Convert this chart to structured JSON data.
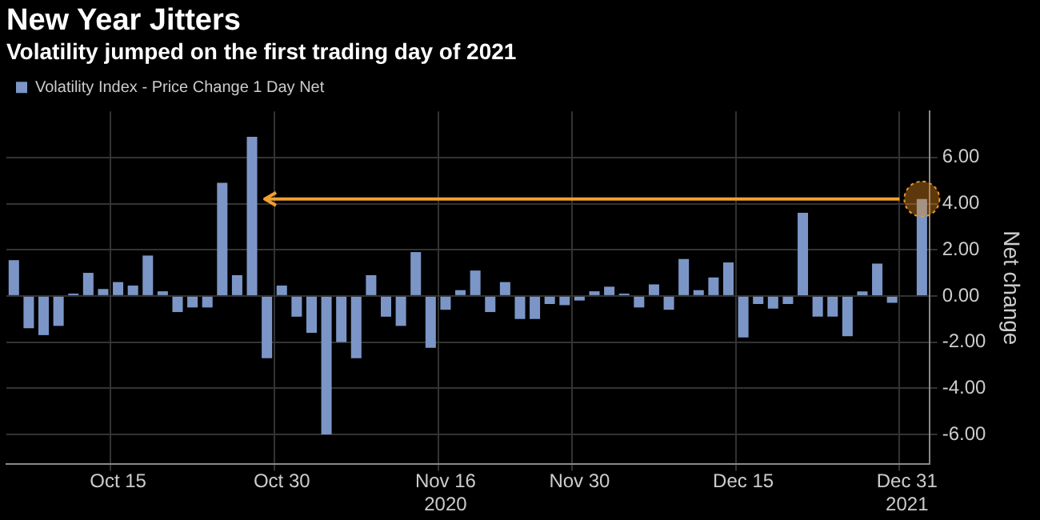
{
  "chart_data": {
    "type": "bar",
    "title": "New Year Jitters",
    "subtitle": "Volatility jumped on the first trading day of 2021",
    "ylabel": "Net change",
    "categories": [
      null,
      null,
      null,
      null,
      null,
      null,
      null,
      "Oct 15",
      null,
      null,
      null,
      null,
      null,
      null,
      null,
      null,
      null,
      null,
      "Oct 30",
      null,
      null,
      null,
      null,
      null,
      null,
      null,
      null,
      null,
      null,
      "Nov 16\n2020",
      null,
      null,
      null,
      null,
      null,
      null,
      null,
      null,
      "Nov 30",
      null,
      null,
      null,
      null,
      null,
      null,
      null,
      null,
      null,
      null,
      "Dec 15",
      null,
      null,
      null,
      null,
      null,
      null,
      null,
      null,
      null,
      null,
      "Dec 31\n2021",
      null
    ],
    "series": [
      {
        "name": "Volatility Index - Price Change 1 Day Net",
        "color": "#7b96c6",
        "values": [
          1.55,
          -1.4,
          -1.7,
          -1.3,
          0.1,
          1.0,
          0.3,
          0.6,
          0.45,
          1.75,
          0.2,
          -0.7,
          -0.5,
          -0.5,
          4.9,
          0.9,
          6.9,
          -2.7,
          0.45,
          -0.9,
          -1.6,
          -6.0,
          -2.0,
          -2.7,
          0.9,
          -0.9,
          -1.3,
          1.9,
          -2.25,
          -0.6,
          0.25,
          1.1,
          -0.7,
          0.6,
          -1.0,
          -1.0,
          -0.35,
          -0.4,
          -0.2,
          0.2,
          0.4,
          0.1,
          -0.5,
          0.5,
          -0.6,
          1.6,
          0.25,
          0.8,
          1.45,
          -1.8,
          -0.35,
          -0.55,
          -0.35,
          3.6,
          -0.9,
          -0.9,
          -1.75,
          0.2,
          1.4,
          -0.3,
          0,
          4.2
        ]
      }
    ],
    "ylim": [
      -7.3,
      8
    ],
    "yticks": [
      {
        "value": -6,
        "label": "-6.00"
      },
      {
        "value": -4,
        "label": "-4.00"
      },
      {
        "value": -2,
        "label": "-2.00"
      },
      {
        "value": 0,
        "label": "0.00"
      },
      {
        "value": 2,
        "label": "2.00"
      },
      {
        "value": 4,
        "label": "4.00"
      },
      {
        "value": 6,
        "label": "6.00"
      }
    ],
    "ref_lines": [
      {
        "axis": "y",
        "value": 4.2,
        "color": "#f0a030"
      }
    ],
    "grid": true,
    "legend": "top left"
  }
}
